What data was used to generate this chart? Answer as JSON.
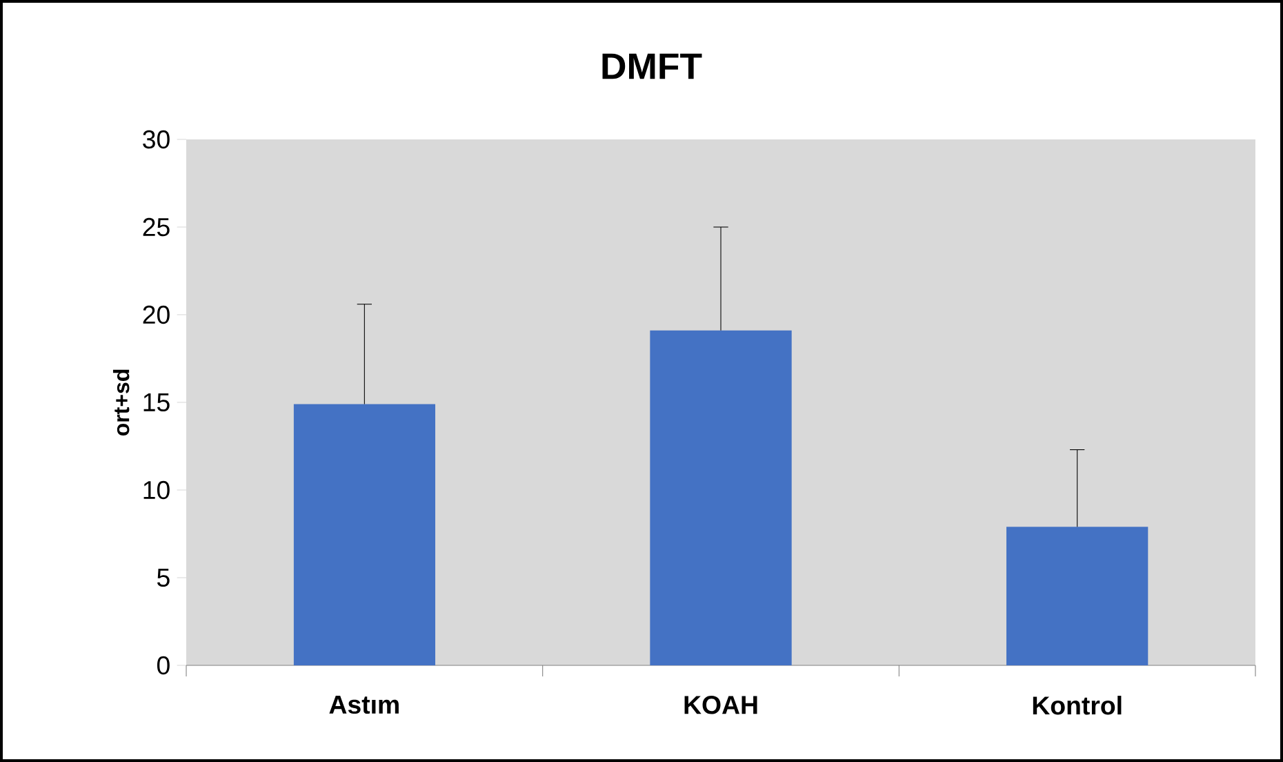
{
  "chart_data": {
    "type": "bar",
    "title": "DMFT",
    "ylabel": "ort+sd",
    "categories": [
      "Astım",
      "KOAH",
      "Kontrol"
    ],
    "values": [
      14.9,
      19.1,
      7.9
    ],
    "errors": [
      [
        14.9,
        20.6
      ],
      [
        19.1,
        25.0
      ],
      [
        7.9,
        12.3
      ]
    ],
    "color": "#4472c4",
    "ylim": [
      0,
      30
    ],
    "yticks": [
      0,
      5,
      10,
      15,
      20,
      25,
      30
    ],
    "grid": false
  }
}
